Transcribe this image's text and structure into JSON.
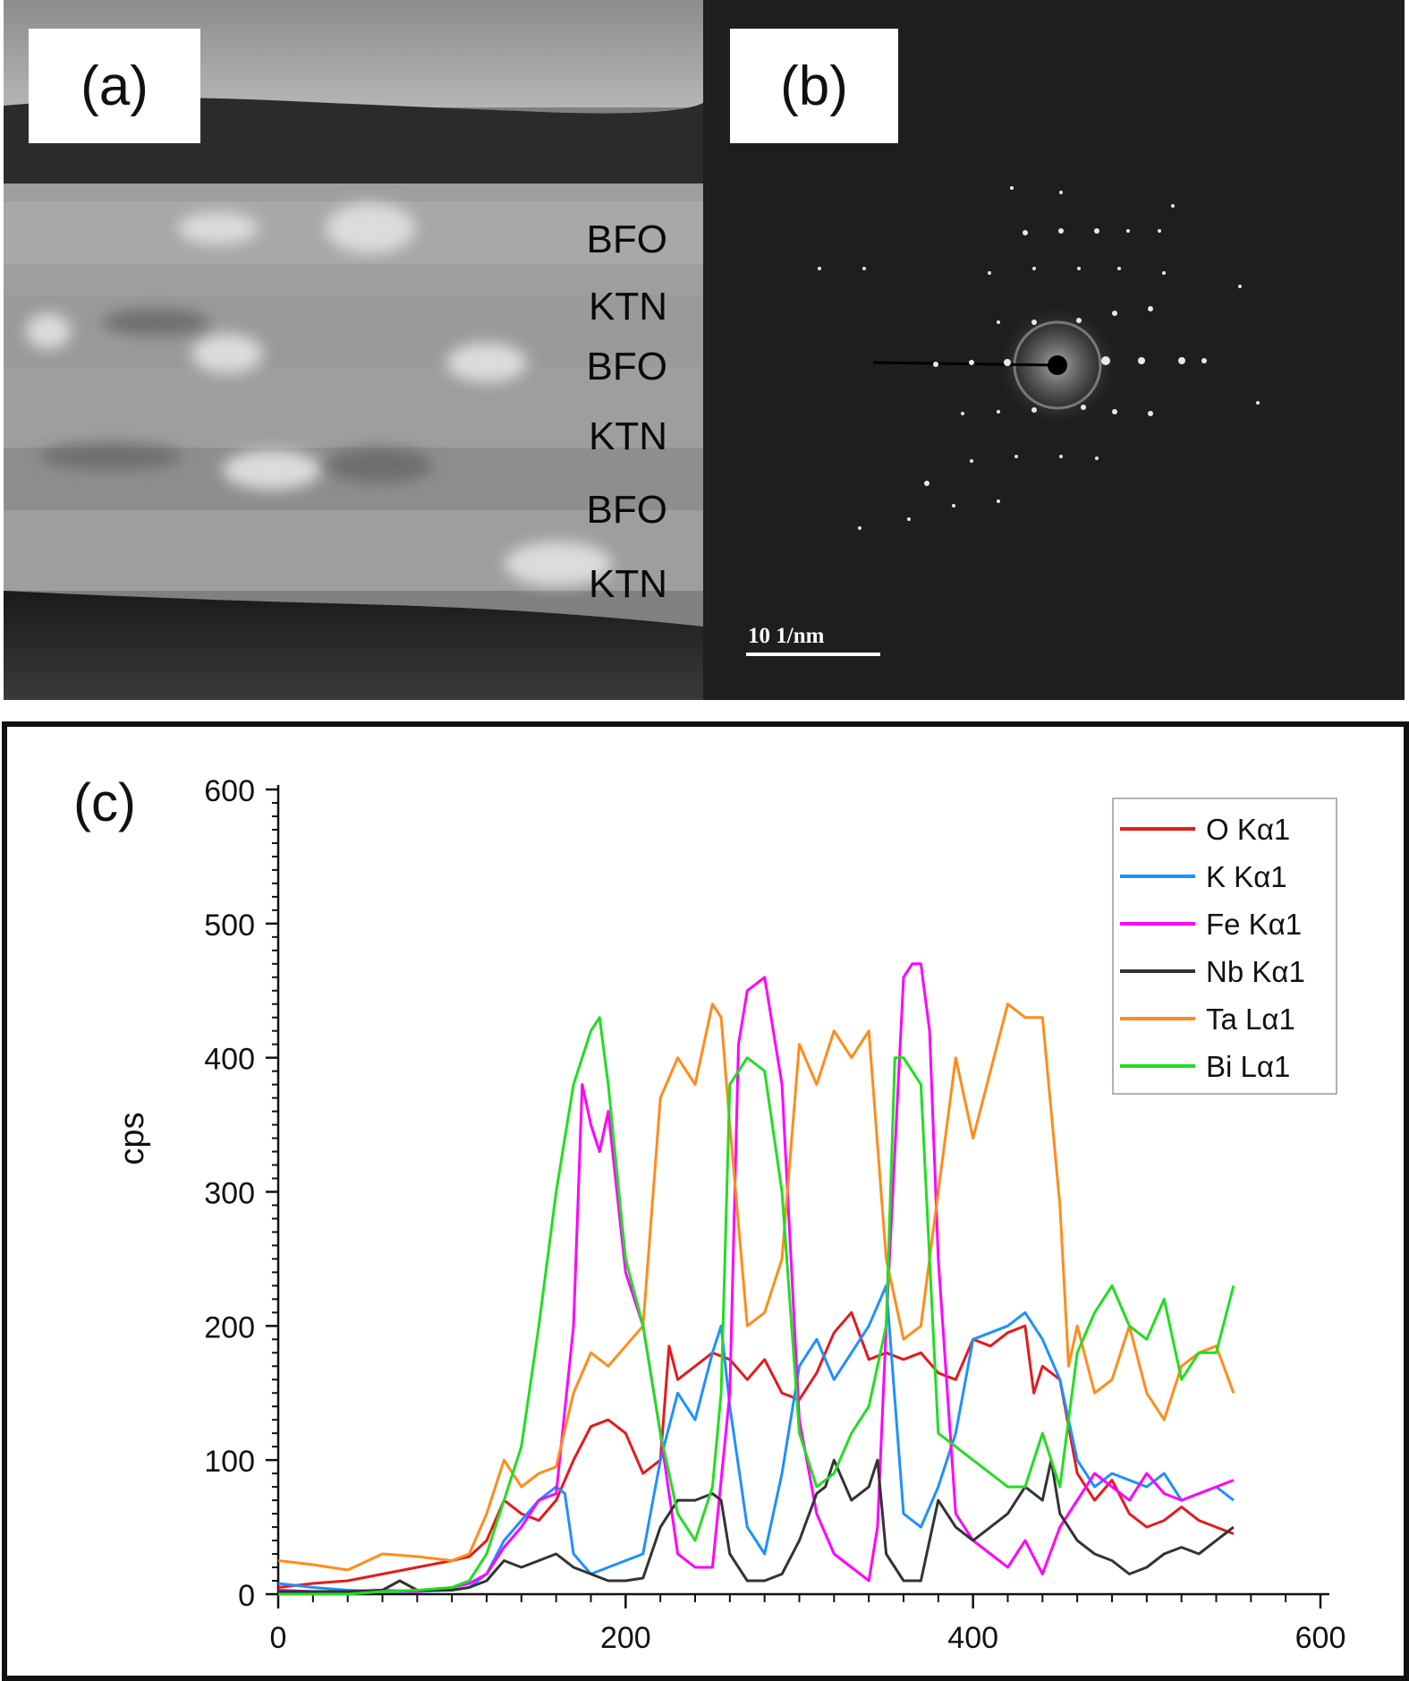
{
  "panel_a": {
    "label": "(a)",
    "layers": [
      "BFO",
      "KTN",
      "BFO",
      "KTN",
      "BFO",
      "KTN"
    ]
  },
  "panel_b": {
    "label": "(b)",
    "scale_bar": "10 1/nm"
  },
  "chart_data": {
    "type": "line",
    "panel_label": "(c)",
    "title": "",
    "xlabel": "",
    "ylabel": "cps",
    "xlim": [
      0,
      600
    ],
    "ylim": [
      0,
      600
    ],
    "xticks": [
      0,
      200,
      400,
      600
    ],
    "yticks": [
      0,
      100,
      200,
      300,
      400,
      500,
      600
    ],
    "legend_position": "top-right",
    "series": [
      {
        "name": "O Kα1",
        "color": "#e41a1c",
        "x": [
          0,
          20,
          40,
          60,
          80,
          100,
          110,
          120,
          130,
          140,
          150,
          160,
          170,
          180,
          190,
          200,
          210,
          220,
          225,
          230,
          240,
          250,
          260,
          270,
          280,
          290,
          300,
          310,
          320,
          330,
          340,
          350,
          360,
          370,
          380,
          390,
          400,
          410,
          420,
          430,
          435,
          440,
          450,
          460,
          470,
          480,
          490,
          500,
          510,
          520,
          530,
          540,
          550
        ],
        "y": [
          5,
          8,
          10,
          15,
          20,
          25,
          28,
          40,
          70,
          60,
          55,
          70,
          100,
          125,
          130,
          120,
          90,
          100,
          185,
          160,
          170,
          180,
          175,
          160,
          175,
          150,
          145,
          165,
          195,
          210,
          175,
          180,
          175,
          180,
          165,
          160,
          190,
          185,
          195,
          200,
          150,
          170,
          160,
          90,
          70,
          85,
          60,
          50,
          55,
          65,
          55,
          50,
          45
        ]
      },
      {
        "name": "K Kα1",
        "color": "#1e90ff",
        "x": [
          0,
          20,
          40,
          60,
          80,
          100,
          110,
          120,
          130,
          140,
          150,
          160,
          165,
          170,
          180,
          190,
          200,
          210,
          220,
          230,
          240,
          250,
          255,
          260,
          270,
          280,
          290,
          300,
          310,
          320,
          330,
          340,
          350,
          360,
          370,
          380,
          390,
          400,
          410,
          420,
          430,
          440,
          450,
          460,
          470,
          480,
          490,
          500,
          510,
          520,
          530,
          540,
          550
        ],
        "y": [
          8,
          5,
          3,
          2,
          2,
          3,
          5,
          15,
          40,
          55,
          70,
          80,
          75,
          30,
          15,
          20,
          25,
          30,
          100,
          150,
          130,
          180,
          200,
          140,
          50,
          30,
          90,
          170,
          190,
          160,
          180,
          200,
          230,
          60,
          50,
          80,
          120,
          190,
          195,
          200,
          210,
          190,
          160,
          100,
          80,
          90,
          85,
          80,
          90,
          70,
          75,
          80,
          70
        ]
      },
      {
        "name": "Fe Kα1",
        "color": "#ff00ff",
        "x": [
          0,
          20,
          40,
          60,
          80,
          100,
          110,
          120,
          130,
          140,
          150,
          160,
          170,
          175,
          180,
          185,
          190,
          200,
          210,
          220,
          230,
          240,
          250,
          260,
          265,
          270,
          280,
          290,
          300,
          310,
          320,
          330,
          340,
          345,
          350,
          360,
          365,
          370,
          375,
          380,
          390,
          400,
          410,
          420,
          430,
          440,
          450,
          460,
          470,
          480,
          490,
          500,
          510,
          520,
          530,
          540,
          550
        ],
        "y": [
          3,
          2,
          2,
          3,
          2,
          5,
          8,
          15,
          35,
          50,
          70,
          75,
          200,
          380,
          350,
          330,
          360,
          240,
          200,
          120,
          30,
          20,
          20,
          150,
          410,
          450,
          460,
          380,
          130,
          60,
          30,
          20,
          10,
          50,
          200,
          460,
          470,
          470,
          420,
          250,
          60,
          40,
          30,
          20,
          40,
          15,
          50,
          70,
          90,
          80,
          70,
          90,
          75,
          70,
          75,
          80,
          85
        ]
      },
      {
        "name": "Nb Kα1",
        "color": "#333333",
        "x": [
          0,
          20,
          40,
          60,
          70,
          80,
          100,
          110,
          120,
          130,
          140,
          150,
          160,
          170,
          180,
          190,
          200,
          210,
          220,
          230,
          240,
          250,
          255,
          260,
          270,
          280,
          290,
          300,
          310,
          315,
          320,
          330,
          340,
          345,
          350,
          360,
          370,
          380,
          390,
          400,
          410,
          420,
          430,
          440,
          445,
          450,
          460,
          470,
          480,
          490,
          500,
          510,
          520,
          530,
          540,
          550
        ],
        "y": [
          2,
          2,
          2,
          3,
          10,
          3,
          3,
          5,
          10,
          25,
          20,
          25,
          30,
          20,
          15,
          10,
          10,
          12,
          50,
          70,
          70,
          75,
          70,
          30,
          10,
          10,
          15,
          40,
          75,
          80,
          100,
          70,
          80,
          100,
          30,
          10,
          10,
          70,
          50,
          40,
          50,
          60,
          80,
          70,
          100,
          60,
          40,
          30,
          25,
          15,
          20,
          30,
          35,
          30,
          40,
          50
        ]
      },
      {
        "name": "Ta Lα1",
        "color": "#ff8c1a",
        "x": [
          0,
          20,
          40,
          60,
          80,
          100,
          110,
          120,
          130,
          140,
          150,
          160,
          170,
          180,
          190,
          200,
          210,
          220,
          230,
          240,
          250,
          255,
          260,
          270,
          280,
          290,
          300,
          310,
          320,
          330,
          340,
          350,
          360,
          370,
          380,
          390,
          400,
          410,
          420,
          430,
          440,
          450,
          455,
          460,
          470,
          480,
          490,
          500,
          510,
          520,
          530,
          540,
          550
        ],
        "y": [
          25,
          22,
          18,
          30,
          28,
          25,
          30,
          60,
          100,
          80,
          90,
          95,
          150,
          180,
          170,
          185,
          200,
          370,
          400,
          380,
          440,
          430,
          350,
          200,
          210,
          250,
          410,
          380,
          420,
          400,
          420,
          250,
          190,
          200,
          300,
          400,
          340,
          390,
          440,
          430,
          430,
          290,
          170,
          200,
          150,
          160,
          200,
          150,
          130,
          170,
          180,
          185,
          150
        ]
      },
      {
        "name": "Bi Lα1",
        "color": "#22dd22",
        "x": [
          0,
          20,
          40,
          60,
          80,
          100,
          110,
          120,
          130,
          140,
          150,
          160,
          170,
          180,
          185,
          190,
          200,
          210,
          220,
          230,
          240,
          250,
          255,
          260,
          270,
          280,
          290,
          300,
          310,
          320,
          330,
          340,
          350,
          355,
          360,
          370,
          380,
          390,
          400,
          410,
          420,
          430,
          440,
          450,
          460,
          470,
          480,
          490,
          500,
          510,
          520,
          530,
          540,
          550
        ],
        "y": [
          0,
          0,
          0,
          2,
          3,
          5,
          10,
          30,
          70,
          110,
          200,
          300,
          380,
          420,
          430,
          380,
          250,
          200,
          120,
          60,
          40,
          80,
          150,
          380,
          400,
          390,
          300,
          120,
          80,
          90,
          120,
          140,
          200,
          400,
          400,
          380,
          120,
          110,
          100,
          90,
          80,
          80,
          120,
          80,
          180,
          210,
          230,
          200,
          190,
          220,
          160,
          180,
          180,
          230
        ]
      }
    ]
  }
}
